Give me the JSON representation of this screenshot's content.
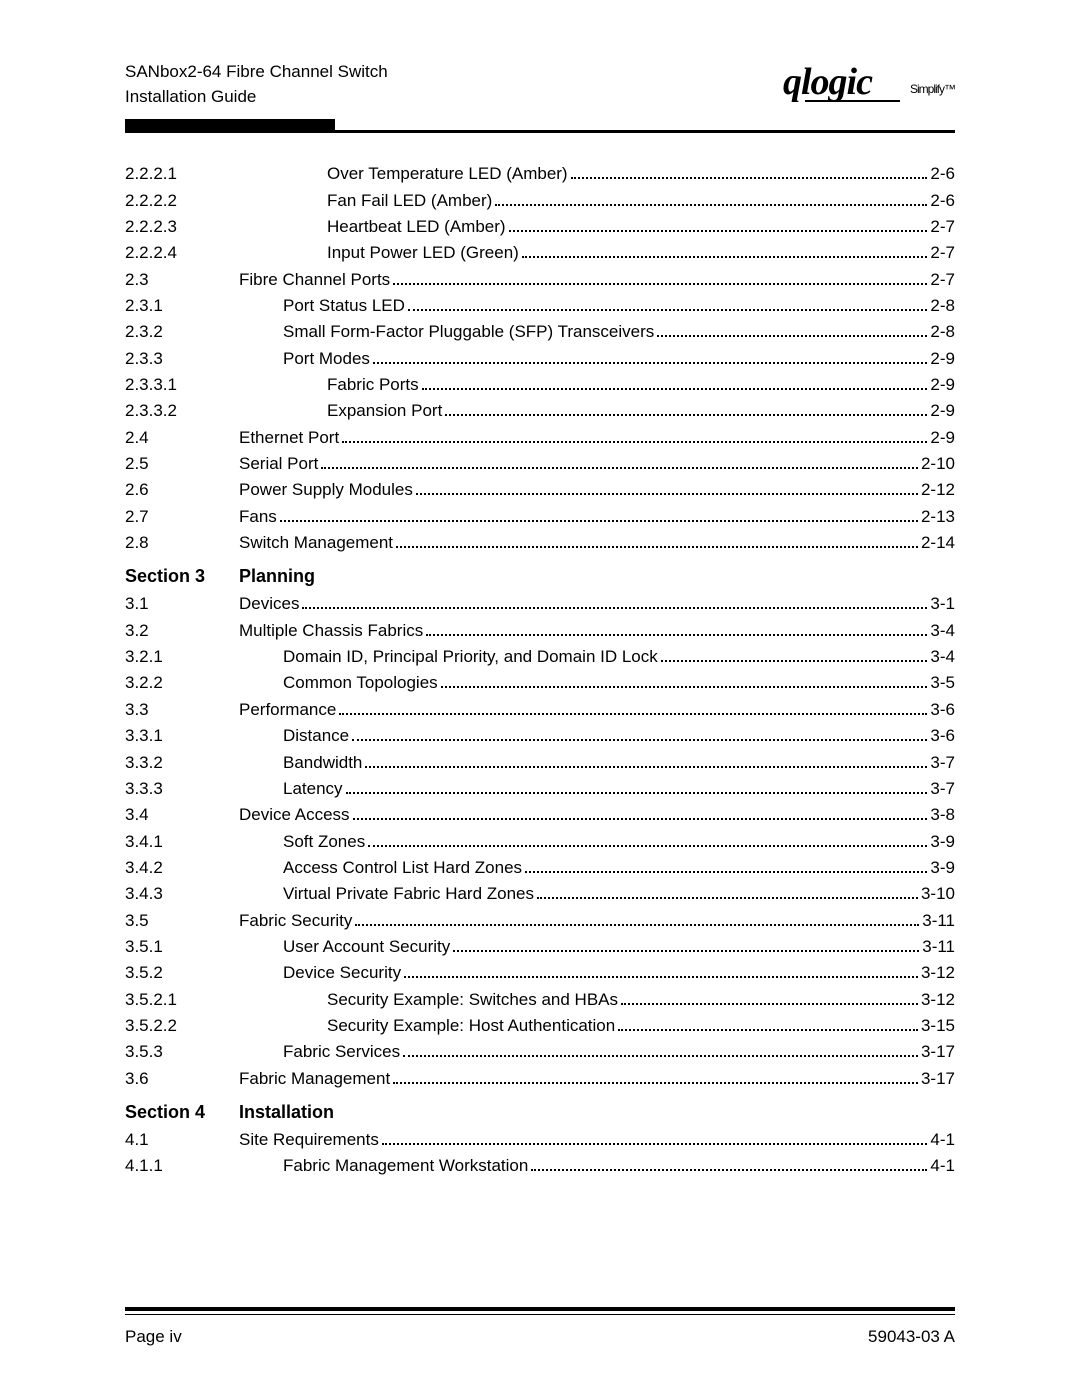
{
  "header": {
    "line1": "SANbox2-64 Fibre Channel Switch",
    "line2": "Installation Guide",
    "logo_text": "qlogic",
    "logo_tag": "Simplify™"
  },
  "toc": [
    {
      "type": "entry",
      "num": "2.2.2.1",
      "indent": 3,
      "title": "Over Temperature LED (Amber)",
      "page": "2-6"
    },
    {
      "type": "entry",
      "num": "2.2.2.2",
      "indent": 3,
      "title": "Fan Fail LED (Amber)",
      "page": "2-6"
    },
    {
      "type": "entry",
      "num": "2.2.2.3",
      "indent": 3,
      "title": "Heartbeat LED (Amber)",
      "page": "2-7"
    },
    {
      "type": "entry",
      "num": "2.2.2.4",
      "indent": 3,
      "title": "Input Power LED (Green)",
      "page": "2-7"
    },
    {
      "type": "entry",
      "num": "2.3",
      "indent": 1,
      "title": "Fibre Channel Ports",
      "page": "2-7"
    },
    {
      "type": "entry",
      "num": "2.3.1",
      "indent": 2,
      "title": "Port Status LED",
      "page": "2-8"
    },
    {
      "type": "entry",
      "num": "2.3.2",
      "indent": 2,
      "title": "Small Form-Factor Pluggable (SFP) Transceivers",
      "page": "2-8"
    },
    {
      "type": "entry",
      "num": "2.3.3",
      "indent": 2,
      "title": "Port Modes",
      "page": "2-9"
    },
    {
      "type": "entry",
      "num": "2.3.3.1",
      "indent": 3,
      "title": "Fabric Ports",
      "page": "2-9"
    },
    {
      "type": "entry",
      "num": "2.3.3.2",
      "indent": 3,
      "title": "Expansion Port",
      "page": "2-9"
    },
    {
      "type": "entry",
      "num": "2.4",
      "indent": 1,
      "title": "Ethernet Port",
      "page": "2-9"
    },
    {
      "type": "entry",
      "num": "2.5",
      "indent": 1,
      "title": "Serial Port",
      "page": "2-10"
    },
    {
      "type": "entry",
      "num": "2.6",
      "indent": 1,
      "title": "Power Supply Modules",
      "page": "2-12"
    },
    {
      "type": "entry",
      "num": "2.7",
      "indent": 1,
      "title": "Fans",
      "page": "2-13"
    },
    {
      "type": "entry",
      "num": "2.8",
      "indent": 1,
      "title": "Switch Management",
      "page": "2-14"
    },
    {
      "type": "section",
      "num": "Section 3",
      "title": "Planning"
    },
    {
      "type": "entry",
      "num": "3.1",
      "indent": 1,
      "title": "Devices",
      "page": "3-1"
    },
    {
      "type": "entry",
      "num": "3.2",
      "indent": 1,
      "title": "Multiple Chassis Fabrics",
      "page": "3-4"
    },
    {
      "type": "entry",
      "num": "3.2.1",
      "indent": 2,
      "title": "Domain ID, Principal Priority, and Domain ID Lock",
      "page": "3-4"
    },
    {
      "type": "entry",
      "num": "3.2.2",
      "indent": 2,
      "title": "Common Topologies",
      "page": "3-5"
    },
    {
      "type": "entry",
      "num": "3.3",
      "indent": 1,
      "title": "Performance",
      "page": "3-6"
    },
    {
      "type": "entry",
      "num": "3.3.1",
      "indent": 2,
      "title": "Distance",
      "page": "3-6"
    },
    {
      "type": "entry",
      "num": "3.3.2",
      "indent": 2,
      "title": "Bandwidth",
      "page": "3-7"
    },
    {
      "type": "entry",
      "num": "3.3.3",
      "indent": 2,
      "title": "Latency",
      "page": "3-7"
    },
    {
      "type": "entry",
      "num": "3.4",
      "indent": 1,
      "title": "Device Access",
      "page": "3-8"
    },
    {
      "type": "entry",
      "num": "3.4.1",
      "indent": 2,
      "title": "Soft Zones",
      "page": "3-9"
    },
    {
      "type": "entry",
      "num": "3.4.2",
      "indent": 2,
      "title": "Access Control List Hard Zones",
      "page": "3-9"
    },
    {
      "type": "entry",
      "num": "3.4.3",
      "indent": 2,
      "title": "Virtual Private Fabric Hard Zones",
      "page": "3-10"
    },
    {
      "type": "entry",
      "num": "3.5",
      "indent": 1,
      "title": "Fabric Security",
      "page": "3-11"
    },
    {
      "type": "entry",
      "num": "3.5.1",
      "indent": 2,
      "title": "User Account Security",
      "page": "3-11"
    },
    {
      "type": "entry",
      "num": "3.5.2",
      "indent": 2,
      "title": "Device Security",
      "page": "3-12"
    },
    {
      "type": "entry",
      "num": "3.5.2.1",
      "indent": 3,
      "title": "Security Example: Switches and HBAs",
      "page": "3-12"
    },
    {
      "type": "entry",
      "num": "3.5.2.2",
      "indent": 3,
      "title": "Security Example: Host Authentication",
      "page": "3-15"
    },
    {
      "type": "entry",
      "num": "3.5.3",
      "indent": 2,
      "title": "Fabric Services",
      "page": "3-17"
    },
    {
      "type": "entry",
      "num": "3.6",
      "indent": 1,
      "title": "Fabric Management",
      "page": "3-17"
    },
    {
      "type": "section",
      "num": "Section 4",
      "title": "Installation"
    },
    {
      "type": "entry",
      "num": "4.1",
      "indent": 1,
      "title": "Site Requirements",
      "page": "4-1"
    },
    {
      "type": "entry",
      "num": "4.1.1",
      "indent": 2,
      "title": "Fabric Management Workstation",
      "page": "4-1"
    }
  ],
  "footer": {
    "left": "Page iv",
    "right": "59043-03  A"
  }
}
